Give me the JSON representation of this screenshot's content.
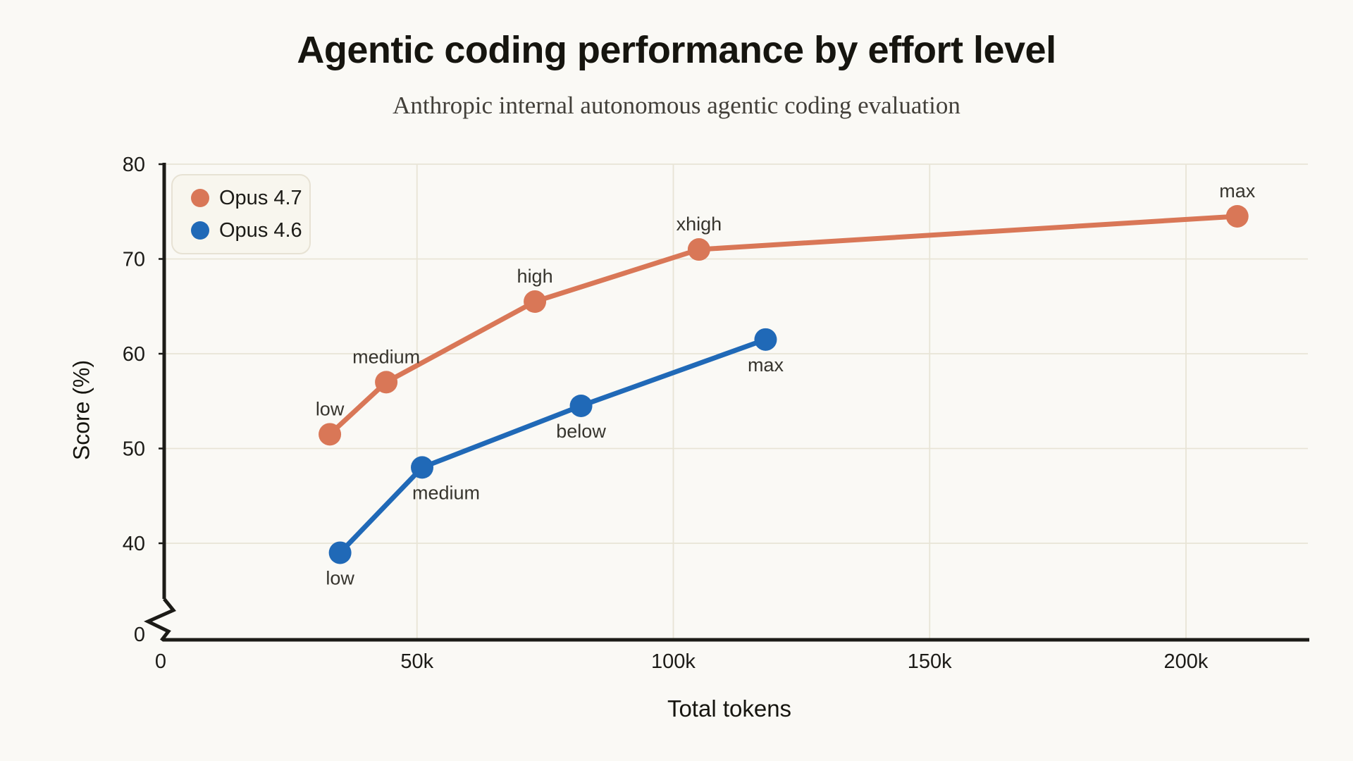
{
  "page": {
    "background": "#faf9f5",
    "title": "Agentic coding performance by effort level",
    "subtitle": "Anthropic internal autonomous agentic coding evaluation"
  },
  "chart_data": {
    "type": "line",
    "title": "Agentic coding performance by effort level",
    "subtitle": "Anthropic internal autonomous agentic coding evaluation",
    "xlabel": "Total tokens",
    "ylabel": "Score (%)",
    "xlim_tokens": [
      0,
      223000
    ],
    "ylim": [
      0,
      80
    ],
    "y_axis_break": {
      "enabled": true,
      "between": [
        0,
        40
      ]
    },
    "grid": true,
    "legend_position": "top-left",
    "x_ticks": [
      {
        "value": 0,
        "label": "0"
      },
      {
        "value": 50000,
        "label": "50k"
      },
      {
        "value": 100000,
        "label": "100k"
      },
      {
        "value": 150000,
        "label": "150k"
      },
      {
        "value": 200000,
        "label": "200k"
      }
    ],
    "y_ticks": [
      {
        "value": 0,
        "label": "0"
      },
      {
        "value": 40,
        "label": "40"
      },
      {
        "value": 50,
        "label": "50"
      },
      {
        "value": 60,
        "label": "60"
      },
      {
        "value": 70,
        "label": "70"
      },
      {
        "value": 80,
        "label": "80"
      }
    ],
    "series": [
      {
        "name": "Opus 4.7",
        "color": "#d97757",
        "points": [
          {
            "x": 33000,
            "y": 51.5,
            "label": "low",
            "label_side": "above"
          },
          {
            "x": 44000,
            "y": 57.0,
            "label": "medium",
            "label_side": "above"
          },
          {
            "x": 73000,
            "y": 65.5,
            "label": "high",
            "label_side": "above"
          },
          {
            "x": 105000,
            "y": 71.0,
            "label": "xhigh",
            "label_side": "above"
          },
          {
            "x": 210000,
            "y": 74.5,
            "label": "max",
            "label_side": "above"
          }
        ]
      },
      {
        "name": "Opus 4.6",
        "color": "#2069b7",
        "points": [
          {
            "x": 35000,
            "y": 39.0,
            "label": "low",
            "label_side": "below"
          },
          {
            "x": 51000,
            "y": 48.0,
            "label": "medium",
            "label_side": "below-right"
          },
          {
            "x": 82000,
            "y": 54.5,
            "label": "below"
          },
          {
            "x": 118000,
            "y": 61.5,
            "label": "max",
            "label_side": "below"
          }
        ]
      }
    ],
    "colors": {
      "grid": "#e8e4d6",
      "axis": "#1c1b17",
      "tick_text": "#1c1b17",
      "point_label_text": "#37352e"
    }
  }
}
